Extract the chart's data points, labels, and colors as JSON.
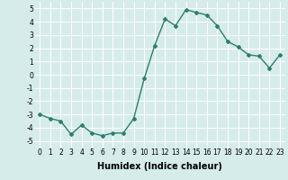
{
  "x": [
    0,
    1,
    2,
    3,
    4,
    5,
    6,
    7,
    8,
    9,
    10,
    11,
    12,
    13,
    14,
    15,
    16,
    17,
    18,
    19,
    20,
    21,
    22,
    23
  ],
  "y": [
    -3.0,
    -3.3,
    -3.5,
    -4.5,
    -3.8,
    -4.4,
    -4.6,
    -4.4,
    -4.4,
    -3.3,
    -0.3,
    2.2,
    4.2,
    3.7,
    4.9,
    4.7,
    4.5,
    3.7,
    2.5,
    2.1,
    1.5,
    1.4,
    0.5,
    1.5
  ],
  "line_color": "#2e7d6e",
  "marker": "D",
  "markersize": 2.0,
  "linewidth": 1.0,
  "xlabel": "Humidex (Indice chaleur)",
  "xlim": [
    -0.5,
    23.5
  ],
  "ylim": [
    -5.5,
    5.5
  ],
  "yticks": [
    -5,
    -4,
    -3,
    -2,
    -1,
    0,
    1,
    2,
    3,
    4,
    5
  ],
  "xticks": [
    0,
    1,
    2,
    3,
    4,
    5,
    6,
    7,
    8,
    9,
    10,
    11,
    12,
    13,
    14,
    15,
    16,
    17,
    18,
    19,
    20,
    21,
    22,
    23
  ],
  "background_color": "#d6ecea",
  "grid_color": "#ffffff",
  "tick_fontsize": 5.5,
  "xlabel_fontsize": 7.0
}
